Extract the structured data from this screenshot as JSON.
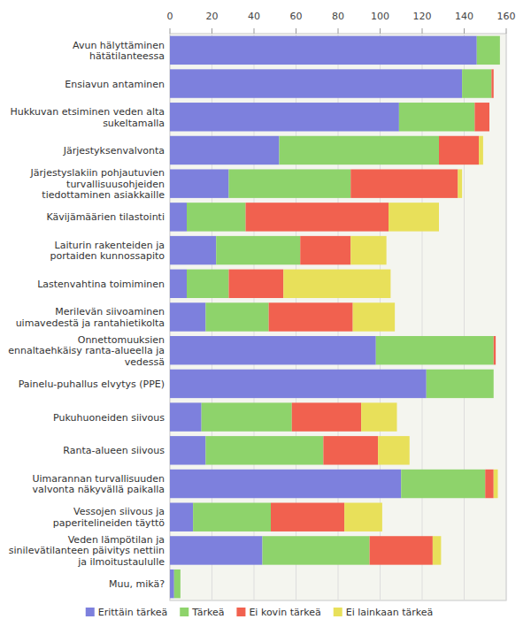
{
  "chart_data": {
    "type": "bar",
    "orientation": "horizontal",
    "stacked": true,
    "grid": true,
    "legend": "bottom",
    "categories": [
      "Avun hälyttäminen hätätilanteessa",
      "Ensiavun antaminen",
      "Hukkuvan etsiminen veden alta sukeltamalla",
      "Järjestyksenvalvonta",
      "Järjestyslakiin pohjautuvien turvallisuusohjeiden tiedottaminen asiakkaille",
      "Kävijämäärien tilastointi",
      "Laiturin rakenteiden ja portaiden kunnossapito",
      "Lastenvahtina toimiminen",
      "Merilevän siivoaminen uimavedestä ja rantahietikolta",
      "Onnettomuuksien ennaltaehkäisy ranta-alueella ja vedessä",
      "Painelu-puhallus elvytys (PPE)",
      "Pukuhuoneiden siivous",
      "Ranta-alueen siivous",
      "Uimarannan turvallisuuden valvonta näkyvällä paikalla",
      "Vessojen siivous ja paperitelineiden täyttö",
      "Veden lämpötilan ja sinilevätilanteen päivitys nettiin ja ilmoitustaululle",
      "Muu, mikä?"
    ],
    "series": [
      {
        "name": "Erittäin tärkeä",
        "color": "#7d80dd",
        "values": [
          146,
          139,
          109,
          52,
          28,
          8,
          22,
          8,
          17,
          98,
          122,
          15,
          17,
          110,
          11,
          44,
          2
        ]
      },
      {
        "name": "Tärkeä",
        "color": "#8ed36b",
        "values": [
          11,
          14,
          36,
          76,
          58,
          28,
          40,
          20,
          30,
          56,
          32,
          43,
          56,
          40,
          37,
          51,
          3
        ]
      },
      {
        "name": "Ei kovin tärkeä",
        "color": "#f1614f",
        "values": [
          0,
          1,
          7,
          19,
          51,
          68,
          24,
          26,
          40,
          1,
          0,
          33,
          26,
          4,
          35,
          30,
          0
        ]
      },
      {
        "name": "Ei lainkaan tärkeä",
        "color": "#e8e05a",
        "values": [
          0,
          0,
          0,
          2,
          2,
          24,
          17,
          51,
          20,
          0,
          0,
          17,
          15,
          2,
          18,
          4,
          0
        ]
      }
    ],
    "xlim": [
      0,
      160
    ],
    "xticks": [
      0,
      20,
      40,
      60,
      80,
      100,
      120,
      140,
      160
    ]
  }
}
